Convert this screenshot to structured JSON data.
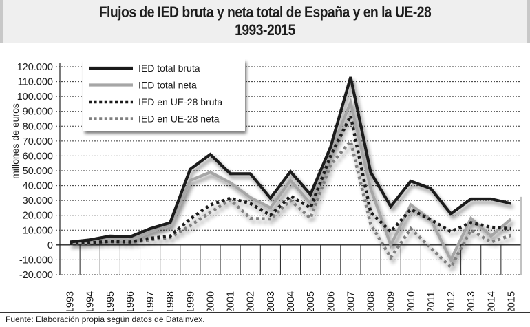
{
  "header": {
    "title_line1": "Flujos de IED bruta y neta total de España y en la UE-28",
    "title_line2": "1993-2015"
  },
  "footer": {
    "source": "Fuente: Elaboración propia según datos de Datainvex."
  },
  "chart_data": {
    "type": "line",
    "title": "Flujos de IED bruta y neta total de España y en la UE-28 1993-2015",
    "xlabel": "",
    "ylabel": "millones de euros",
    "ylim": [
      -20000,
      120000
    ],
    "y_ticks": [
      120000,
      110000,
      100000,
      90000,
      80000,
      70000,
      60000,
      50000,
      40000,
      30000,
      20000,
      10000,
      0,
      -10000,
      -20000
    ],
    "y_tick_labels": [
      "120.000",
      "110.000",
      "100.000",
      "90.000",
      "80.000",
      "70.000",
      "60.000",
      "50.000",
      "40.000",
      "30.000",
      "20.000",
      "10.000",
      "0",
      "-10.000",
      "-20.000"
    ],
    "grid": true,
    "legend_position": "top-left",
    "categories": [
      "1993",
      "1994",
      "1995",
      "1996",
      "1997",
      "1998",
      "1999",
      "2000",
      "2001",
      "2002",
      "2003",
      "2004",
      "2005",
      "2006",
      "2007",
      "2008",
      "2009",
      "2010",
      "2011",
      "2012",
      "2013",
      "2014",
      "2015"
    ],
    "series": [
      {
        "name": "IED total bruta",
        "style": "solid",
        "color": "#1a1a1a",
        "values": [
          2000,
          3500,
          6000,
          5500,
          11000,
          15000,
          51000,
          61000,
          48000,
          48000,
          31500,
          49500,
          34000,
          66000,
          113000,
          49000,
          26000,
          43000,
          38000,
          21000,
          31000,
          31000,
          28000
        ]
      },
      {
        "name": "IED total neta",
        "style": "solid",
        "color": "#a6a6a6",
        "values": [
          1500,
          2500,
          4000,
          3500,
          9000,
          13500,
          43500,
          49000,
          42000,
          32000,
          25000,
          43500,
          28000,
          63000,
          96000,
          38000,
          0,
          27000,
          17000,
          -10000,
          18000,
          6000,
          17500
        ]
      },
      {
        "name": "IED en UE-28 bruta",
        "style": "dotted",
        "color": "#1a1a1a",
        "values": [
          1000,
          1500,
          2500,
          2000,
          4500,
          6000,
          17500,
          27000,
          31500,
          28000,
          20000,
          33000,
          25000,
          60000,
          87000,
          22000,
          9000,
          24000,
          17000,
          9000,
          15000,
          12000,
          11000
        ]
      },
      {
        "name": "IED en UE-28 neta",
        "style": "dotted",
        "color": "#808080",
        "values": [
          800,
          1200,
          2000,
          1500,
          3500,
          5000,
          13000,
          22000,
          30500,
          18000,
          17500,
          30000,
          18000,
          54000,
          70000,
          14000,
          -8500,
          11000,
          -2000,
          -15000,
          10000,
          2000,
          6500
        ]
      }
    ]
  }
}
